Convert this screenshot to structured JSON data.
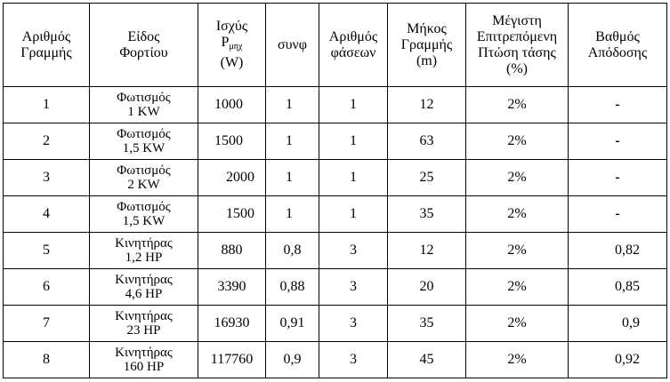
{
  "headers": {
    "line_no": [
      "Αριθμός",
      "Γραμμής"
    ],
    "load_type": [
      "Είδος",
      "Φορτίου"
    ],
    "power": {
      "line1": "Ισχύς",
      "p": "P",
      "sub": "μηχ",
      "unit": "(W)"
    },
    "cosphi": "συνφ",
    "phases": [
      "Αριθμός",
      "φάσεων"
    ],
    "length": [
      "Μήκος",
      "Γραμμής",
      "(m)"
    ],
    "drop": [
      "Μέγιστη",
      "Επιτρεπόμενη",
      "Πτώση τάσης",
      "(%)"
    ],
    "efficiency": [
      "Βαθμός",
      "Απόδοσης"
    ]
  },
  "rows": [
    {
      "n": "1",
      "load1": "Φωτισμός",
      "load2": "1 KW",
      "power": "1000",
      "cos": "1",
      "phases": "1",
      "length": "12",
      "drop": "2%",
      "eff": "-"
    },
    {
      "n": "2",
      "load1": "Φωτισμός",
      "load2": "1,5 KW",
      "power": "1500",
      "cos": "1",
      "phases": "1",
      "length": "63",
      "drop": "2%",
      "eff": "-"
    },
    {
      "n": "3",
      "load1": "Φωτισμός",
      "load2": "2 KW",
      "power": "2000",
      "cos": "1",
      "phases": "1",
      "length": "25",
      "drop": "2%",
      "eff": "-"
    },
    {
      "n": "4",
      "load1": "Φωτισμός",
      "load2": "1,5 KW",
      "power": "1500",
      "cos": "1",
      "phases": "1",
      "length": "35",
      "drop": "2%",
      "eff": "-"
    },
    {
      "n": "5",
      "load1": "Κινητήρας",
      "load2": "1,2 HP",
      "power": "880",
      "cos": "0,8",
      "phases": "3",
      "length": "12",
      "drop": "2%",
      "eff": "0,82"
    },
    {
      "n": "6",
      "load1": "Κινητήρας",
      "load2": "4,6 HP",
      "power": "3390",
      "cos": "0,88",
      "phases": "3",
      "length": "20",
      "drop": "2%",
      "eff": "0,85"
    },
    {
      "n": "7",
      "load1": "Κινητήρας",
      "load2": "23 HP",
      "power": "16930",
      "cos": "0,91",
      "phases": "3",
      "length": "35",
      "drop": "2%",
      "eff": "0,9"
    },
    {
      "n": "8",
      "load1": "Κινητήρας",
      "load2": "160 HP",
      "power": "117760",
      "cos": "0,9",
      "phases": "3",
      "length": "45",
      "drop": "2%",
      "eff": "0,92"
    }
  ]
}
